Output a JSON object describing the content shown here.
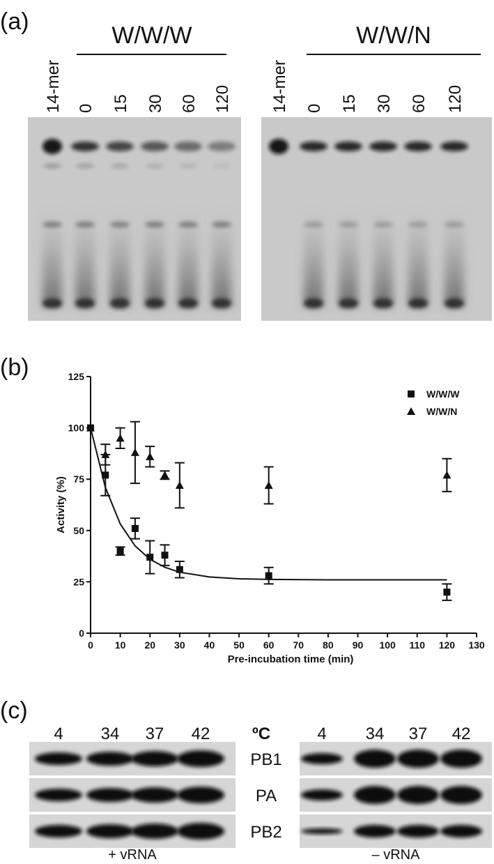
{
  "panel_a": {
    "label": "(a)",
    "gels": [
      {
        "group": "W/W/W",
        "lanes": [
          "14-mer",
          "0",
          "15",
          "30",
          "60",
          "120"
        ]
      },
      {
        "group": "W/W/N",
        "lanes": [
          "14-mer",
          "0",
          "15",
          "30",
          "60",
          "120"
        ]
      }
    ]
  },
  "chart_data": {
    "type": "scatter",
    "panel_label": "(b)",
    "x_label": "Pre-incubation time (min)",
    "y_label": "Activity (%)",
    "x": [
      0,
      5,
      10,
      15,
      20,
      25,
      30,
      60,
      120
    ],
    "series": [
      {
        "name": "W/W/W",
        "color": "#111111",
        "marker": "square",
        "values": [
          100,
          77,
          40,
          51,
          37,
          38,
          31,
          28,
          20
        ],
        "errors": [
          0,
          10,
          2,
          5,
          8,
          5,
          4,
          4,
          4
        ]
      },
      {
        "name": "W/W/N",
        "color": "#111111",
        "marker": "triangle",
        "values": [
          100,
          87,
          95,
          88,
          86,
          77,
          72,
          72,
          77
        ],
        "errors": [
          0,
          5,
          5,
          15,
          5,
          2,
          11,
          9,
          8
        ]
      }
    ],
    "fit": {
      "x": [
        0,
        5,
        10,
        15,
        20,
        25,
        30,
        40,
        50,
        60,
        80,
        100,
        120
      ],
      "values": [
        100,
        70.9,
        53.2,
        42.5,
        36.0,
        32.1,
        29.7,
        27.4,
        26.5,
        26.2,
        26.0,
        26.0,
        26.0
      ],
      "color": "#111111"
    },
    "xlim": [
      0,
      130
    ],
    "ylim": [
      0,
      125
    ],
    "xticks": [
      0,
      10,
      20,
      30,
      40,
      50,
      60,
      70,
      80,
      90,
      100,
      110,
      120,
      130
    ],
    "yticks": [
      0,
      25,
      50,
      75,
      100,
      125
    ],
    "grid": false,
    "legend": "upper right"
  },
  "panel_c": {
    "label": "(c)",
    "left_temps": [
      "4",
      "34",
      "37",
      "42"
    ],
    "unit": "ºC",
    "right_temps": [
      "4",
      "34",
      "37",
      "42"
    ],
    "proteins": [
      "PB1",
      "PA",
      "PB2"
    ],
    "left_caption": "+ vRNA",
    "right_caption": "– vRNA"
  }
}
